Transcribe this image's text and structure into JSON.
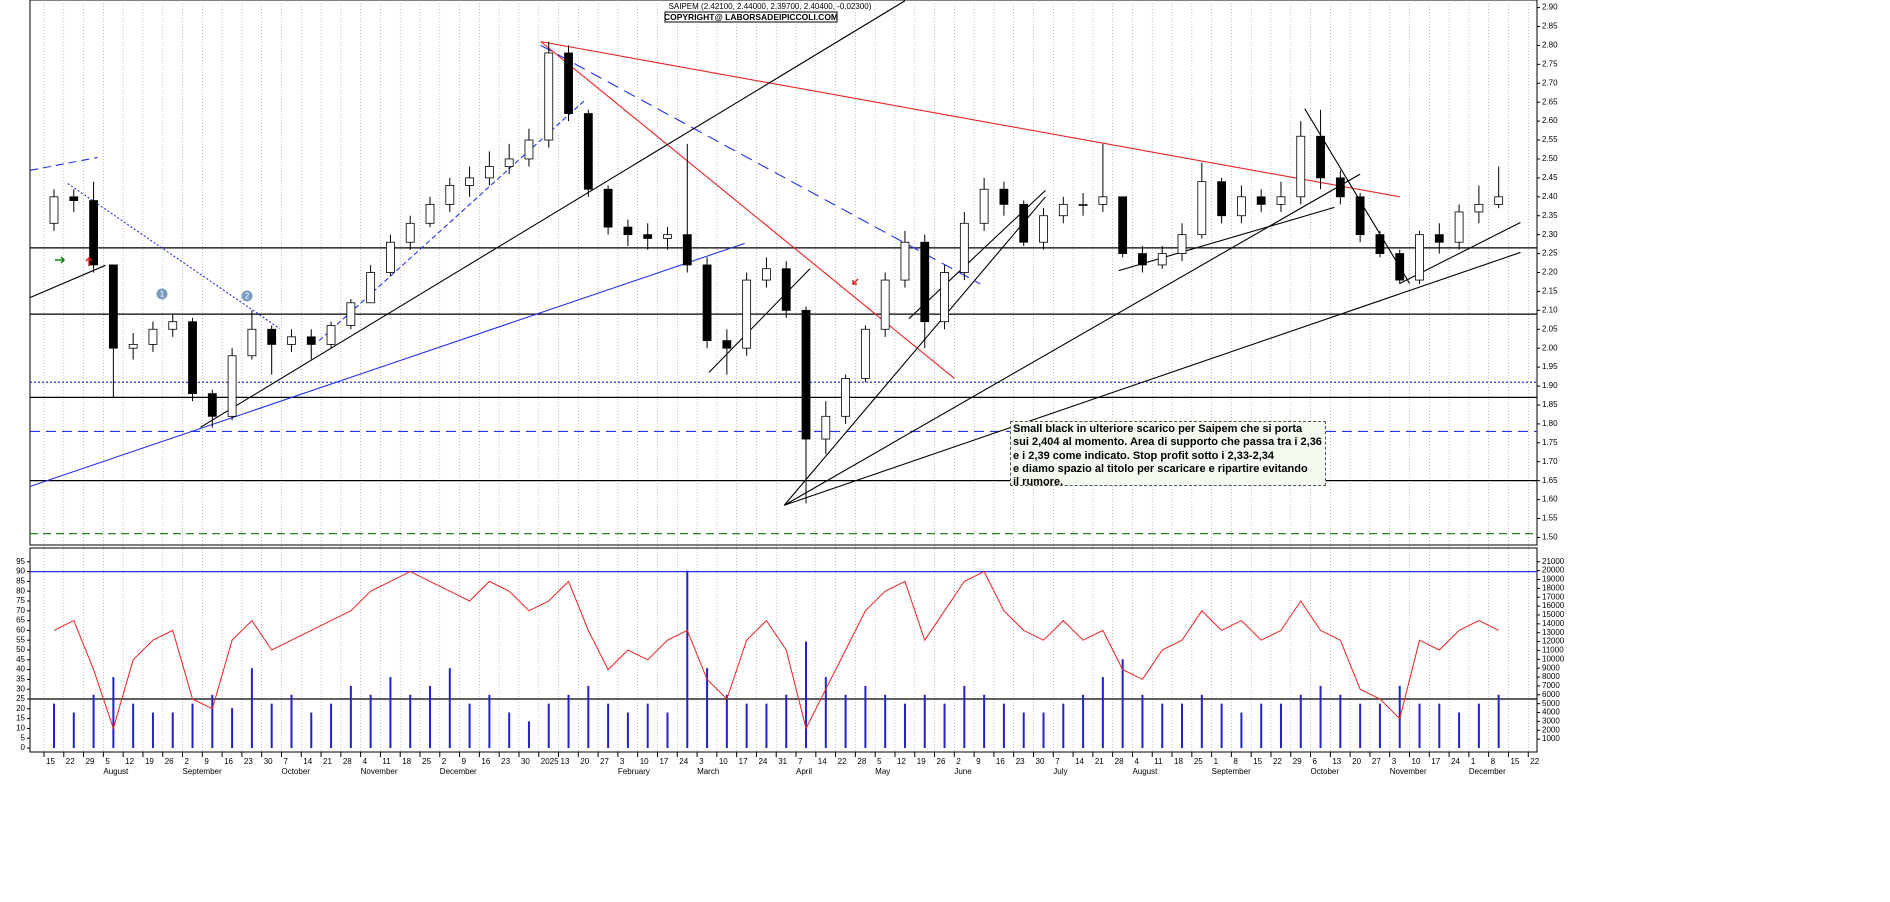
{
  "chart_data": [
    {
      "type": "candlestick",
      "title": "SAIPEM (2.42100, 2.44000, 2.39700, 2.40400, -0.02300)",
      "copyright": "COPYRIGHT@ LABORSADEIPICCOLI.COM",
      "annotation": [
        "Small black in ulteriore scarico per Saipem che si porta",
        "sui 2,404 al momento. Area di supporto che passa tra i 2,36",
        "e i 2,39 come indicato. Stop profit sotto i 2,33-2,34",
        "e diamo spazio al titolo per scaricare e ripartire evitando",
        "il rumore."
      ],
      "markers": [
        "1",
        "2"
      ],
      "categories": [
        "15",
        "22",
        "29",
        "5",
        "12",
        "19",
        "26",
        "2",
        "9",
        "16",
        "23",
        "30",
        "7",
        "14",
        "21",
        "28",
        "4",
        "11",
        "18",
        "25",
        "2",
        "9",
        "16",
        "23",
        "30",
        "2025",
        "13",
        "20",
        "27",
        "3",
        "10",
        "17",
        "24",
        "3",
        "10",
        "17",
        "24",
        "31",
        "7",
        "14",
        "22",
        "28",
        "5",
        "12",
        "19",
        "26",
        "2",
        "9",
        "16",
        "23",
        "30",
        "7",
        "14",
        "21",
        "28",
        "4",
        "11",
        "18",
        "25",
        "1",
        "8",
        "15",
        "22",
        "29",
        "6",
        "13",
        "20",
        "27",
        "3",
        "10",
        "17",
        "24",
        "1",
        "8",
        "15",
        "22"
      ],
      "months": [
        null,
        null,
        null,
        "August",
        null,
        null,
        null,
        "September",
        null,
        null,
        null,
        null,
        "October",
        null,
        null,
        null,
        "November",
        null,
        null,
        null,
        "December",
        null,
        null,
        null,
        null,
        null,
        null,
        null,
        null,
        "February",
        null,
        null,
        null,
        "March",
        null,
        null,
        null,
        null,
        "April",
        null,
        null,
        null,
        "May",
        null,
        null,
        null,
        "June",
        null,
        null,
        null,
        null,
        "July",
        null,
        null,
        null,
        "August",
        null,
        null,
        null,
        "September",
        null,
        null,
        null,
        null,
        "October",
        null,
        null,
        null,
        "November",
        null,
        null,
        null,
        "December",
        null,
        null,
        null
      ],
      "open": [
        2.33,
        2.4,
        2.39,
        2.22,
        2.0,
        2.01,
        2.05,
        2.07,
        1.88,
        1.82,
        1.98,
        2.05,
        2.01,
        2.03,
        2.01,
        2.06,
        2.12,
        2.2,
        2.28,
        2.33,
        2.38,
        2.43,
        2.45,
        2.48,
        2.5,
        2.55,
        2.78,
        2.62,
        2.42,
        2.32,
        2.3,
        2.29,
        2.3,
        2.22,
        2.02,
        2.0,
        2.18,
        2.21,
        2.1,
        1.76,
        1.82,
        1.92,
        2.05,
        2.18,
        2.28,
        2.07,
        2.2,
        2.33,
        2.42,
        2.38,
        2.28,
        2.35,
        2.38,
        2.38,
        2.4,
        2.25,
        2.22,
        2.25,
        2.3,
        2.44,
        2.35,
        2.4,
        2.38,
        2.4,
        2.56,
        2.45,
        2.4,
        2.3,
        2.25,
        2.18,
        2.3,
        2.28,
        2.36,
        2.38,
        null,
        null
      ],
      "high": [
        2.42,
        2.42,
        2.44,
        2.22,
        2.04,
        2.07,
        2.09,
        2.08,
        1.89,
        2.0,
        2.1,
        2.06,
        2.05,
        2.05,
        2.07,
        2.13,
        2.22,
        2.3,
        2.35,
        2.4,
        2.45,
        2.48,
        2.52,
        2.54,
        2.58,
        2.81,
        2.8,
        2.63,
        2.43,
        2.34,
        2.33,
        2.32,
        2.54,
        2.24,
        2.05,
        2.2,
        2.24,
        2.23,
        2.11,
        1.86,
        1.93,
        2.06,
        2.2,
        2.31,
        2.3,
        2.22,
        2.36,
        2.45,
        2.44,
        2.39,
        2.37,
        2.4,
        2.41,
        2.54,
        2.4,
        2.27,
        2.27,
        2.33,
        2.49,
        2.45,
        2.43,
        2.42,
        2.44,
        2.6,
        2.63,
        2.47,
        2.41,
        2.31,
        2.26,
        2.31,
        2.33,
        2.38,
        2.43,
        2.48,
        null,
        null
      ],
      "low": [
        2.31,
        2.36,
        2.2,
        1.87,
        1.97,
        1.99,
        2.03,
        1.86,
        1.79,
        1.81,
        1.97,
        1.93,
        1.99,
        1.97,
        2.0,
        2.05,
        2.12,
        2.19,
        2.26,
        2.32,
        2.36,
        2.4,
        2.43,
        2.46,
        2.48,
        2.53,
        2.6,
        2.4,
        2.3,
        2.27,
        2.26,
        2.26,
        2.2,
        2.0,
        1.93,
        1.98,
        2.16,
        2.08,
        1.59,
        1.72,
        1.8,
        1.91,
        2.03,
        2.16,
        2.0,
        2.05,
        2.18,
        2.31,
        2.35,
        2.27,
        2.26,
        2.33,
        2.35,
        2.36,
        2.24,
        2.2,
        2.21,
        2.23,
        2.29,
        2.33,
        2.33,
        2.36,
        2.36,
        2.38,
        2.42,
        2.38,
        2.28,
        2.24,
        2.17,
        2.17,
        2.25,
        2.26,
        2.33,
        2.37,
        null,
        null
      ],
      "close": [
        2.4,
        2.39,
        2.22,
        2.0,
        2.01,
        2.05,
        2.07,
        1.88,
        1.82,
        1.98,
        2.05,
        2.01,
        2.03,
        2.01,
        2.06,
        2.12,
        2.2,
        2.28,
        2.33,
        2.38,
        2.43,
        2.45,
        2.48,
        2.5,
        2.55,
        2.78,
        2.62,
        2.42,
        2.32,
        2.3,
        2.29,
        2.3,
        2.22,
        2.02,
        2.0,
        2.18,
        2.21,
        2.1,
        1.76,
        1.82,
        1.92,
        2.05,
        2.18,
        2.28,
        2.07,
        2.2,
        2.33,
        2.42,
        2.38,
        2.28,
        2.35,
        2.38,
        2.38,
        2.4,
        2.25,
        2.22,
        2.25,
        2.3,
        2.44,
        2.35,
        2.4,
        2.38,
        2.4,
        2.56,
        2.45,
        2.4,
        2.3,
        2.25,
        2.18,
        2.3,
        2.28,
        2.36,
        2.38,
        2.4,
        null,
        null
      ],
      "ylim": [
        1.48,
        2.92
      ],
      "yticks": [
        {
          "value": 1.5,
          "label": "1.50"
        },
        1.55,
        {
          "value": 1.6,
          "label": "1.60"
        },
        1.65,
        {
          "value": 1.7,
          "label": "1.70"
        },
        1.75,
        {
          "value": 1.8,
          "label": "1.80"
        },
        1.85,
        {
          "value": 1.9,
          "label": "1.90"
        },
        1.95,
        {
          "value": 2.0,
          "label": "2.00"
        },
        2.05,
        {
          "value": 2.1,
          "label": "2.10"
        },
        2.15,
        {
          "value": 2.2,
          "label": "2.20"
        },
        2.25,
        {
          "value": 2.3,
          "label": "2.30"
        },
        2.35,
        {
          "value": 2.4,
          "label": "2.40"
        },
        2.45,
        {
          "value": 2.5,
          "label": "2.50"
        },
        2.55,
        {
          "value": 2.6,
          "label": "2.60"
        },
        2.65,
        {
          "value": 2.7,
          "label": "2.70"
        },
        2.75,
        {
          "value": 2.8,
          "label": "2.80"
        },
        2.85,
        {
          "value": 2.9,
          "label": "2.90"
        }
      ],
      "hlines": [
        {
          "value": 2.265,
          "color": "#000000",
          "dash": "none"
        },
        {
          "value": 2.09,
          "color": "#000000",
          "dash": "none"
        },
        {
          "value": 1.91,
          "color": "#2233ee",
          "dash": "2,2"
        },
        {
          "value": 1.87,
          "color": "#000000",
          "dash": "none"
        },
        {
          "value": 1.78,
          "color": "#2233ee",
          "dash": "10,6"
        },
        {
          "value": 1.65,
          "color": "#000000",
          "dash": "none"
        },
        {
          "value": 1.51,
          "color": "#228822",
          "dash": "8,5"
        }
      ],
      "trendlines": [
        {
          "x": [
            24.6,
            68.0
          ],
          "y": [
            2.81,
            2.4
          ],
          "color": "#ee2222",
          "dash": "none"
        },
        {
          "x": [
            24.6,
            45.5
          ],
          "y": [
            2.81,
            1.92
          ],
          "color": "#ee2222",
          "dash": "none"
        },
        {
          "x": [
            24.6,
            46.8
          ],
          "y": [
            2.8,
            2.17
          ],
          "color": "#2233ee",
          "dash": "12,7"
        },
        {
          "x": [
            7.4,
            43.0
          ],
          "y": [
            1.791,
            2.918
          ],
          "color": "#000000",
          "dash": "none"
        },
        {
          "x": [
            36.9,
            50.1
          ],
          "y": [
            1.585,
            2.4
          ],
          "color": "#000000",
          "dash": "none"
        },
        {
          "x": [
            36.9,
            66.0
          ],
          "y": [
            1.585,
            2.46
          ],
          "color": "#000000",
          "dash": "none"
        },
        {
          "x": [
            36.9,
            74.1
          ],
          "y": [
            1.585,
            2.253
          ],
          "color": "#000000",
          "dash": "none"
        },
        {
          "x": [
            -1.2,
            34.9
          ],
          "y": [
            1.635,
            2.277
          ],
          "color": "#2233ee",
          "dash": "none"
        },
        {
          "x": [
            53.8,
            64.7
          ],
          "y": [
            2.205,
            2.372
          ],
          "color": "#000000",
          "dash": "none"
        },
        {
          "x": [
            63.2,
            68.5
          ],
          "y": [
            2.633,
            2.171
          ],
          "color": "#000000",
          "dash": "none"
        },
        {
          "x": [
            68.0,
            74.1
          ],
          "y": [
            2.171,
            2.332
          ],
          "color": "#000000",
          "dash": "none"
        },
        {
          "x": [
            -1.2,
            2.2
          ],
          "y": [
            2.47,
            2.504
          ],
          "color": "#2233ee",
          "dash": "8,5"
        },
        {
          "x": [
            0.7,
            11.4
          ],
          "y": [
            2.435,
            2.052
          ],
          "color": "#2233ee",
          "dash": "2,2"
        },
        {
          "x": [
            13.4,
            26.8
          ],
          "y": [
            2.02,
            2.654
          ],
          "color": "#2233ee",
          "dash": "5,3"
        },
        {
          "x": [
            -1.2,
            2.6
          ],
          "y": [
            2.134,
            2.219
          ],
          "color": "#000000",
          "dash": "none"
        },
        {
          "x": [
            33.1,
            38.2
          ],
          "y": [
            1.936,
            2.21
          ],
          "color": "#000000",
          "dash": "none"
        },
        {
          "x": [
            43.2,
            50.1
          ],
          "y": [
            2.078,
            2.417
          ],
          "color": "#000000",
          "dash": "none"
        }
      ],
      "candle_up": "#ffffff",
      "candle_down": "#000000",
      "grid": true
    },
    {
      "type": "bar",
      "series": [
        {
          "type": "bar",
          "axis": "y2",
          "color": "#2222cc",
          "values": [
            5000,
            4000,
            6000,
            8000,
            5000,
            4000,
            4000,
            5000,
            6000,
            4500,
            9000,
            5000,
            6000,
            4000,
            5000,
            7000,
            6000,
            8000,
            6000,
            7000,
            9000,
            5000,
            6000,
            4000,
            3000,
            5000,
            6000,
            7000,
            5000,
            4000,
            5000,
            4000,
            20000,
            9000,
            6000,
            5000,
            5000,
            6000,
            12000,
            8000,
            6000,
            7000,
            6000,
            5000,
            6000,
            5000,
            7000,
            6000,
            5000,
            4000,
            4000,
            5000,
            6000,
            8000,
            10000,
            6000,
            5000,
            5000,
            6000,
            5000,
            4000,
            5000,
            5000,
            6000,
            7000,
            6000,
            5000,
            5000,
            7000,
            5000,
            5000,
            4000,
            5000,
            6000,
            null,
            null
          ]
        },
        {
          "type": "line",
          "color": "#ee2222",
          "values": [
            60,
            65,
            40,
            10,
            45,
            55,
            60,
            25,
            20,
            55,
            65,
            50,
            55,
            60,
            65,
            70,
            80,
            85,
            90,
            85,
            80,
            75,
            85,
            80,
            70,
            75,
            85,
            60,
            40,
            50,
            45,
            55,
            60,
            35,
            25,
            55,
            65,
            50,
            10,
            30,
            50,
            70,
            80,
            85,
            55,
            70,
            85,
            90,
            70,
            60,
            55,
            65,
            55,
            60,
            40,
            35,
            50,
            55,
            70,
            60,
            65,
            55,
            60,
            75,
            60,
            55,
            30,
            25,
            15,
            55,
            50,
            60,
            65,
            60,
            null,
            null
          ]
        }
      ],
      "ylim": [
        0,
        100
      ],
      "yticks": [
        0,
        5,
        10,
        15,
        20,
        25,
        30,
        35,
        40,
        45,
        50,
        55,
        60,
        65,
        70,
        75,
        80,
        85,
        90,
        95
      ],
      "y2lim": [
        0,
        22100
      ],
      "y2ticks": [
        1000,
        2000,
        3000,
        4000,
        5000,
        6000,
        7000,
        8000,
        9000,
        10000,
        11000,
        12000,
        13000,
        14000,
        15000,
        16000,
        17000,
        18000,
        19000,
        20000,
        21000
      ],
      "hlines": [
        {
          "value": 90,
          "color": "#2233ee"
        },
        {
          "value": 25,
          "color": "#000000"
        }
      ]
    }
  ]
}
